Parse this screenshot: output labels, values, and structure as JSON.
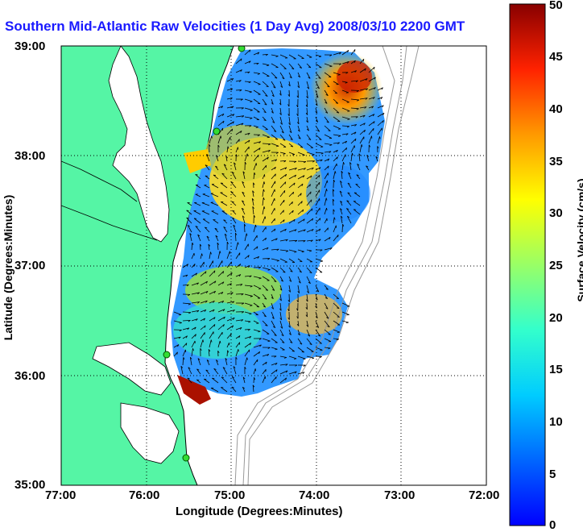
{
  "title": "Southern Mid-Atlantic Raw Velocities (1 Day Avg) 2008/03/10 2200 GMT",
  "map": {
    "x_axis_label": "Longitude (Degrees:Minutes)",
    "y_axis_label": "Latitude (Degrees:Minutes)",
    "x_ticks": [
      "77:00",
      "76:00",
      "75:00",
      "74:00",
      "73:00",
      "72:00"
    ],
    "y_ticks": [
      "39:00",
      "38:00",
      "37:00",
      "36:00",
      "35:00"
    ],
    "lon_range": [
      -77,
      -72
    ],
    "lat_range": [
      35,
      39
    ],
    "grid": "dotted",
    "land_color": "#55f5a5",
    "stations": [
      "station-1",
      "station-2",
      "station-3",
      "station-4"
    ]
  },
  "colorbar": {
    "label": "Surface Velocity (cm/s)",
    "min": 0,
    "max": 50,
    "ticks": [
      "0",
      "5",
      "10",
      "15",
      "20",
      "25",
      "30",
      "35",
      "40",
      "45",
      "50"
    ],
    "colormap": "jet"
  }
}
